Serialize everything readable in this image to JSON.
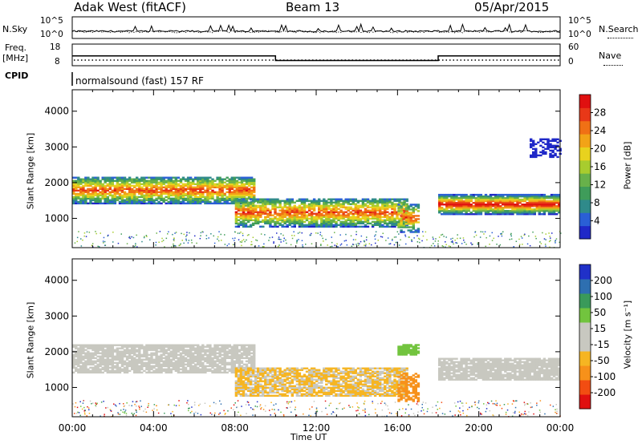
{
  "header": {
    "station": "Adak West (fitACF)",
    "beam": "Beam 13",
    "date": "05/Apr/2015"
  },
  "noise_panel": {
    "left_label": "N.Sky",
    "right_label": "N.Search",
    "tick_top": "10^5",
    "tick_bottom": "10^0",
    "right_tick_top": "10^5",
    "right_tick_bottom": "10^0"
  },
  "freq_panel": {
    "label_line1": "Freq.",
    "label_line2": "[MHz]",
    "right_label": "Nave",
    "left_tick_top": "18",
    "left_tick_bottom": "8",
    "right_tick_top": "60",
    "right_tick_bottom": "0"
  },
  "cpid": {
    "label": "CPID",
    "program": "normalsound (fast) 157 RF"
  },
  "power_panel": {
    "ylabel": "Slant Range [km]",
    "cbar_label": "Power [dB]",
    "cbar_ticks": [
      "28",
      "24",
      "20",
      "16",
      "12",
      "8",
      "4"
    ]
  },
  "velocity_panel": {
    "ylabel": "Slant Range [km]",
    "cbar_label": "Velocity [m s⁻¹]",
    "cbar_ticks": [
      "200",
      "100",
      "50",
      "15",
      "-15",
      "-50",
      "-100",
      "-200"
    ]
  },
  "xaxis": {
    "label": "Time UT",
    "ticks": [
      "00:00",
      "04:00",
      "08:00",
      "12:00",
      "16:00",
      "20:00",
      "00:00"
    ]
  },
  "chart_data": [
    {
      "type": "line",
      "title": "Adak West (fitACF) Beam 13 05/Apr/2015",
      "panel": "frequency",
      "xlabel": "Time UT",
      "ylabel": "Freq. [MHz]",
      "ylim": [
        8,
        18
      ],
      "series": [
        {
          "x": [
            "00:00",
            "10:00",
            "10:00",
            "18:00",
            "18:00",
            "24:00"
          ],
          "values": [
            12.5,
            12.5,
            10.4,
            10.4,
            12.5,
            12.5
          ]
        }
      ]
    },
    {
      "type": "heatmap",
      "panel": "power",
      "xlabel": "Time UT",
      "ylabel": "Slant Range [km]",
      "xlim": [
        "00:00",
        "24:00"
      ],
      "ylim": [
        180,
        4600
      ],
      "yticks": [
        1000,
        2000,
        3000,
        4000
      ],
      "colorbar": {
        "label": "Power [dB]",
        "ticks": [
          4,
          8,
          12,
          16,
          20,
          24,
          28
        ]
      },
      "features": [
        {
          "time_range": [
            "00:00",
            "09:00"
          ],
          "slant_range_km": [
            1400,
            2100
          ],
          "peak_power_db": 20
        },
        {
          "time_range": [
            "08:00",
            "16:30"
          ],
          "slant_range_km": [
            750,
            1600
          ],
          "peak_power_db": 22
        },
        {
          "time_range": [
            "18:00",
            "24:00"
          ],
          "slant_range_km": [
            1100,
            1600
          ],
          "peak_power_db": 28
        }
      ]
    },
    {
      "type": "heatmap",
      "panel": "velocity",
      "xlabel": "Time UT",
      "ylabel": "Slant Range [km]",
      "xlim": [
        "00:00",
        "24:00"
      ],
      "ylim": [
        180,
        4600
      ],
      "yticks": [
        1000,
        2000,
        3000,
        4000
      ],
      "colorbar": {
        "label": "Velocity [m s⁻¹]",
        "ticks": [
          -200,
          -100,
          -50,
          -15,
          15,
          50,
          100,
          200
        ]
      },
      "features": [
        {
          "time_range": [
            "00:00",
            "09:00"
          ],
          "slant_range_km": [
            1400,
            2200
          ],
          "velocity_ms": 0
        },
        {
          "time_range": [
            "08:00",
            "16:30"
          ],
          "slant_range_km": [
            750,
            1600
          ],
          "velocity_ms": -60
        },
        {
          "time_range": [
            "16:00",
            "17:00"
          ],
          "slant_range_km": [
            1900,
            2200
          ],
          "velocity_ms": 40
        },
        {
          "time_range": [
            "18:00",
            "24:00"
          ],
          "slant_range_km": [
            1200,
            1800
          ],
          "velocity_ms": 0
        }
      ]
    }
  ]
}
